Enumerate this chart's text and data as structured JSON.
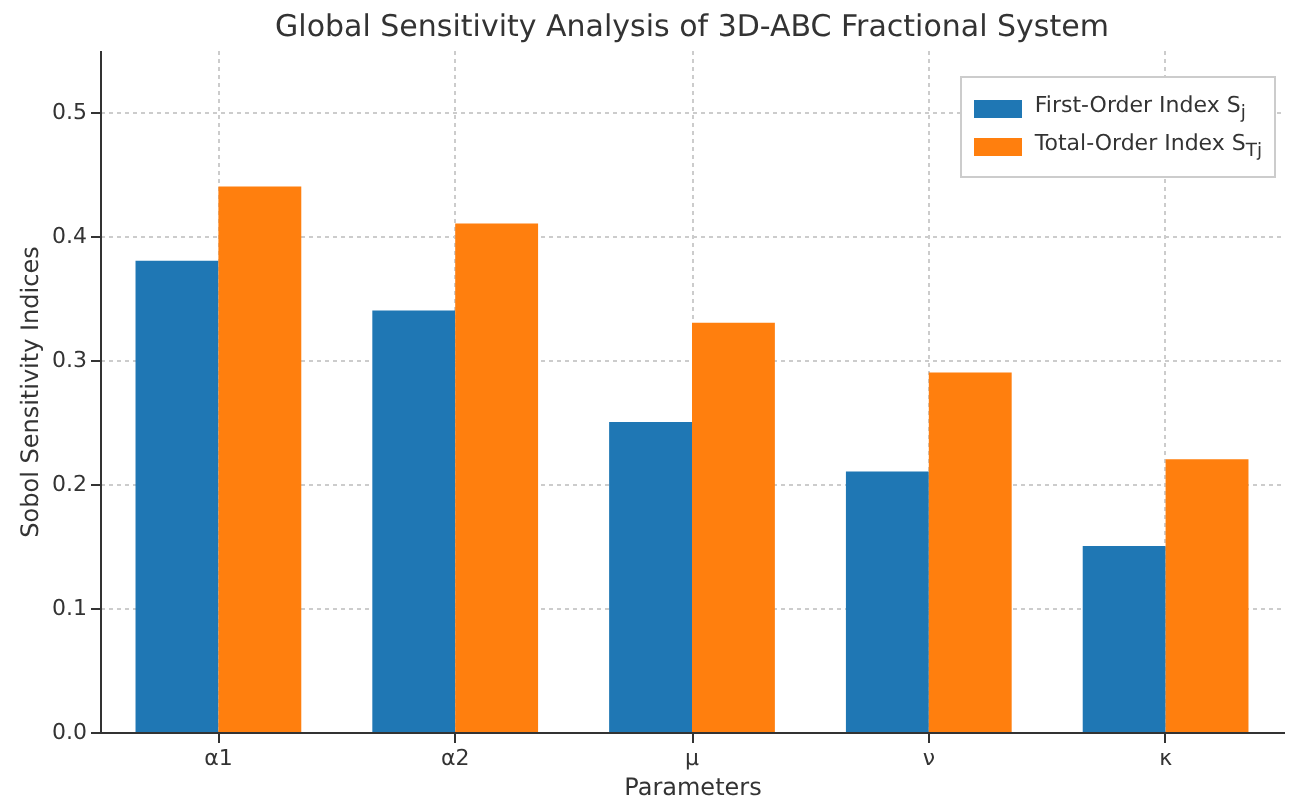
{
  "chart_data": {
    "type": "bar",
    "title": "Global Sensitivity Analysis of 3D-ABC Fractional System",
    "xlabel": "Parameters",
    "ylabel": "Sobol Sensitivity Indices",
    "categories": [
      "α1",
      "α2",
      "μ",
      "ν",
      "κ"
    ],
    "series": [
      {
        "name": "First-Order Index S$_{j}$",
        "color": "#1f77b4",
        "values": [
          0.38,
          0.34,
          0.25,
          0.21,
          0.15
        ]
      },
      {
        "name": "Total-Order Index S$_{Tj}$",
        "color": "#ff7f0e",
        "values": [
          0.44,
          0.41,
          0.33,
          0.29,
          0.22
        ]
      }
    ],
    "ylim": [
      0,
      0.55
    ],
    "yticks": [
      {
        "value": 0,
        "label": "0.0"
      },
      {
        "value": 0.1,
        "label": "0.1"
      },
      {
        "value": 0.2,
        "label": "0.2"
      },
      {
        "value": 0.3,
        "label": "0.3"
      },
      {
        "value": 0.4,
        "label": "0.4"
      },
      {
        "value": 0.5,
        "label": "0.5"
      }
    ],
    "grid": true,
    "legend": "top right"
  }
}
